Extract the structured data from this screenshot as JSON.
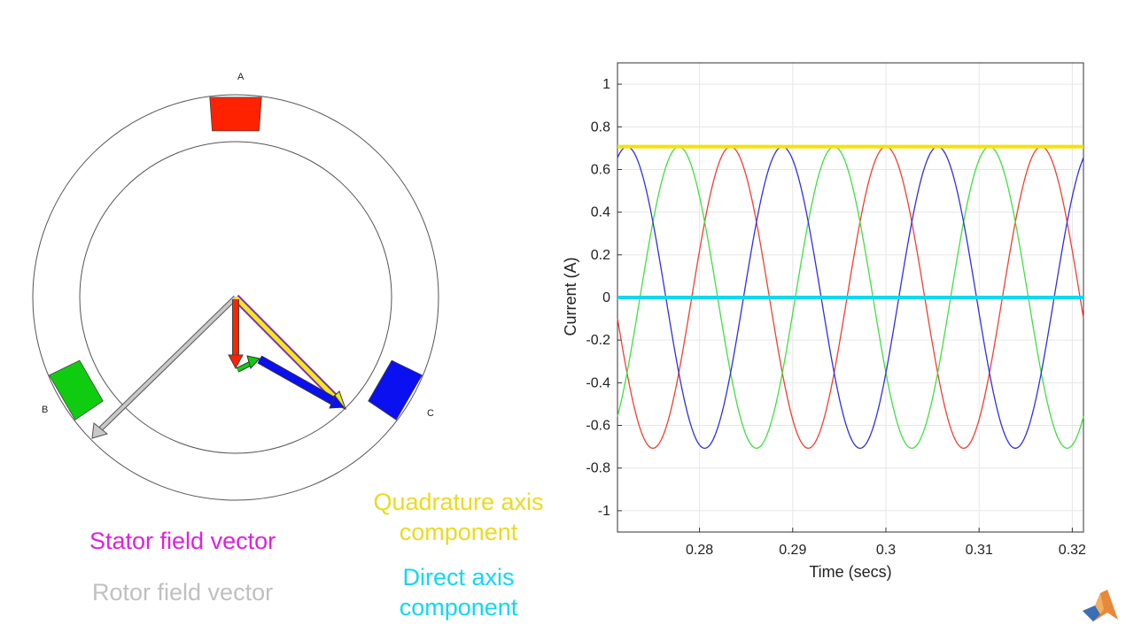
{
  "motor": {
    "phase_labels": {
      "a": "A",
      "b": "B",
      "c": "C"
    },
    "phase_colors": {
      "a": "#ff2200",
      "b": "#10cc10",
      "c": "#0a10f0"
    }
  },
  "legend": {
    "stator_field": "Stator field vector",
    "rotor_field": "Rotor field vector",
    "quadrature_line1": "Quadrature axis",
    "quadrature_line2": "component",
    "direct_line1": "Direct axis",
    "direct_line2": "component",
    "colors": {
      "stator": "#e020e0",
      "rotor": "#c0c0c0",
      "quadrature": "#e8dc20",
      "direct": "#10d8f0"
    }
  },
  "chart_data": {
    "type": "line",
    "xlabel": "Time (secs)",
    "ylabel": "Current (A)",
    "xlim": [
      0.2712,
      0.3212
    ],
    "ylim": [
      -1.1,
      1.1
    ],
    "xticks": [
      0.28,
      0.29,
      0.3,
      0.31,
      0.32
    ],
    "xtick_labels": [
      "0.28",
      "0.29",
      "0.3",
      "0.31",
      "0.32"
    ],
    "yticks": [
      1,
      0.8,
      0.6,
      0.4,
      0.2,
      0,
      -0.2,
      -0.4,
      -0.6,
      -0.8,
      -1
    ],
    "ytick_labels": [
      "1",
      "0.8",
      "0.6",
      "0.4",
      "0.2",
      "0",
      "-0.2",
      "-0.4",
      "-0.6",
      "-0.8",
      "-1"
    ],
    "grid": true,
    "series": [
      {
        "color": "#f04030",
        "amplitude": 0.7071,
        "frequency_hz": 60,
        "peak_time": 0.3,
        "width": 1.3
      },
      {
        "color": "#40e040",
        "amplitude": 0.7071,
        "frequency_hz": 60,
        "peak_time": 0.27778,
        "width": 1.3
      },
      {
        "color": "#3030e0",
        "amplitude": 0.7071,
        "frequency_hz": 60,
        "peak_time": 0.28889,
        "width": 1.3
      },
      {
        "color": "#f5e300",
        "constant": 0.7071,
        "width": 4
      },
      {
        "color": "#10d8f0",
        "constant": 0,
        "width": 4
      }
    ]
  }
}
